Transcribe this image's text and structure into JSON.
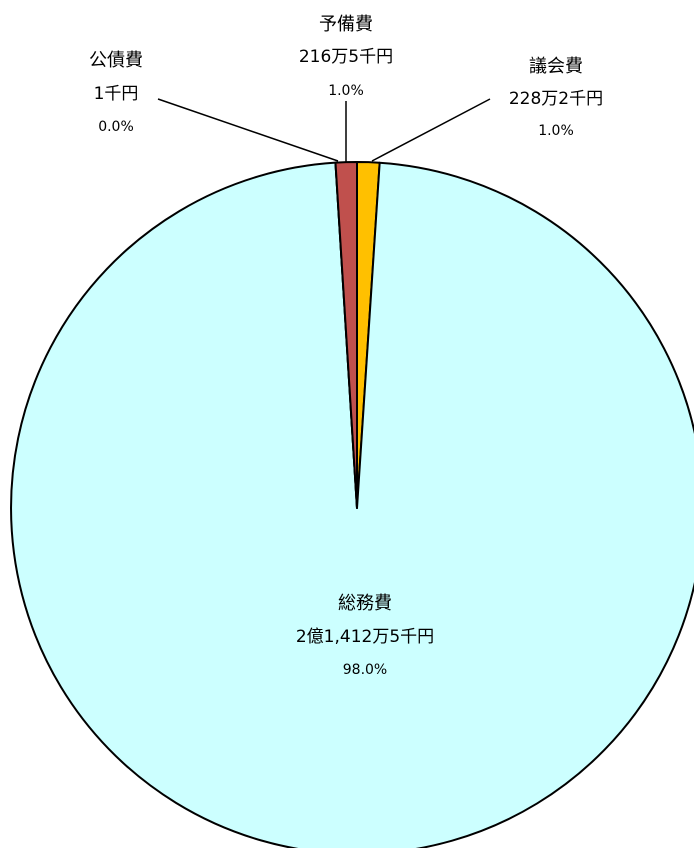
{
  "chart_data": {
    "type": "pie",
    "slices": [
      {
        "name": "議会費",
        "amount": "228万2千円",
        "value": 2282,
        "percent": "1.0%",
        "color": "#ffc000"
      },
      {
        "name": "総務費",
        "amount": "2億1,412万5千円",
        "value": 214125,
        "percent": "98.0%",
        "color": "#ccffff"
      },
      {
        "name": "公債費",
        "amount": "1千円",
        "value": 1,
        "percent": "0.0%",
        "color": "#c0504d"
      },
      {
        "name": "予備費",
        "amount": "216万5千円",
        "value": 2165,
        "percent": "1.0%",
        "color": "#c0504d"
      }
    ],
    "start": "12 o'clock",
    "direction": "clockwise",
    "legend": "none"
  }
}
